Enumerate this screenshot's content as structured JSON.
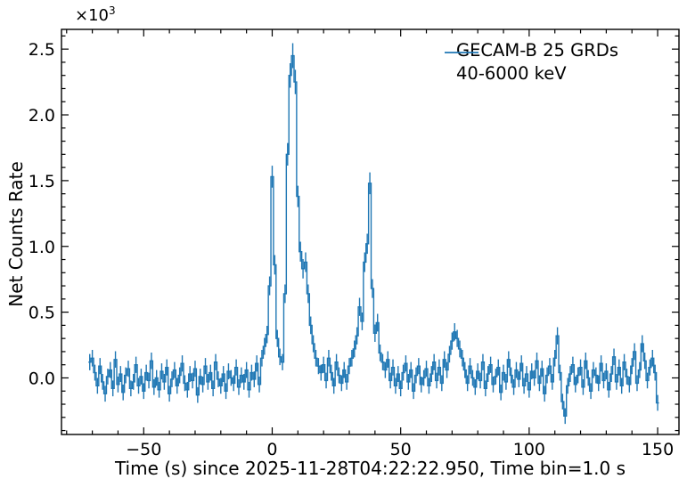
{
  "figure": {
    "ylabel": "Net Counts Rate",
    "xlabel": "Time (s) since 2025-11-28T04:22:22.950, Time bin=1.0 s",
    "offset_base": "×10",
    "offset_exp": "3",
    "legend": {
      "line1": "GECAM-B 25 GRDs",
      "line2": "40-6000 keV"
    },
    "background_color": "#ffffff",
    "spine_color": "#000000"
  },
  "chart_data": {
    "type": "line",
    "style": "steps-mid with symmetric error bars, no caps",
    "title": "",
    "xlabel": "Time (s) since 2025-11-28T04:22:22.950, Time bin=1.0 s",
    "ylabel": "Net Counts Rate (×10³)",
    "legend_entries": [
      "GECAM-B 25 GRDs 40-6000 keV"
    ],
    "legend_position": "upper right",
    "grid": false,
    "line_color": "#1f77b4",
    "xlim": [
      -82,
      158.3
    ],
    "ylim": [
      -430,
      2650
    ],
    "x_ticks_major": [
      -50,
      0,
      50,
      100,
      150
    ],
    "x_tick_labels": [
      "−50",
      "0",
      "50",
      "100",
      "150"
    ],
    "x_minor_step": 10,
    "y_ticks_major": [
      0,
      500,
      1000,
      1500,
      2000,
      2500
    ],
    "y_tick_labels": [
      "0.0",
      "0.5",
      "1.0",
      "1.5",
      "2.0",
      "2.5"
    ],
    "y_minor_step": 100,
    "x_start": -71,
    "x_step": 1.0,
    "y": [
      120,
      150,
      40,
      -60,
      90,
      -30,
      -120,
      10,
      60,
      -80,
      140,
      -50,
      30,
      -110,
      20,
      70,
      -80,
      -30,
      100,
      -60,
      10,
      -100,
      40,
      -20,
      130,
      -70,
      0,
      -90,
      50,
      -30,
      80,
      -120,
      -10,
      60,
      -60,
      20,
      110,
      -40,
      -90,
      30,
      -20,
      70,
      -130,
      10,
      -50,
      90,
      -30,
      40,
      -80,
      120,
      -10,
      -60,
      30,
      -100,
      50,
      0,
      -40,
      80,
      -70,
      20,
      -30,
      60,
      -90,
      40,
      -10,
      110,
      -50,
      150,
      240,
      330,
      700,
      1530,
      860,
      300,
      160,
      120,
      640,
      1700,
      2300,
      2450,
      2250,
      1380,
      960,
      830,
      880,
      640,
      400,
      260,
      150,
      90,
      40,
      100,
      -20,
      150,
      40,
      -60,
      120,
      20,
      -40,
      60,
      -30,
      90,
      150,
      220,
      320,
      540,
      430,
      880,
      1020,
      1480,
      680,
      340,
      420,
      190,
      120,
      60,
      140,
      -20,
      80,
      -60,
      30,
      -80,
      40,
      110,
      -30,
      60,
      -100,
      20,
      90,
      -50,
      0,
      70,
      -60,
      30,
      120,
      -20,
      80,
      -40,
      140,
      60,
      180,
      280,
      350,
      300,
      220,
      150,
      60,
      -40,
      90,
      0,
      -70,
      50,
      -20,
      120,
      -80,
      30,
      100,
      -50,
      10,
      80,
      -110,
      40,
      -30,
      140,
      20,
      -70,
      60,
      -10,
      110,
      -60,
      30,
      -90,
      50,
      0,
      130,
      -40,
      70,
      -120,
      20,
      90,
      -30,
      150,
      320,
      40,
      -180,
      -290,
      -60,
      30,
      100,
      -50,
      20,
      80,
      -70,
      130,
      0,
      -100,
      60,
      20,
      -40,
      110,
      -20,
      50,
      -90,
      30,
      160,
      -30,
      80,
      -60,
      120,
      10,
      -50,
      90,
      200,
      -40,
      60,
      260,
      130,
      -20,
      80,
      150,
      40,
      -190
    ],
    "yerr_model": {
      "base": 60,
      "scale": 2.2
    }
  }
}
